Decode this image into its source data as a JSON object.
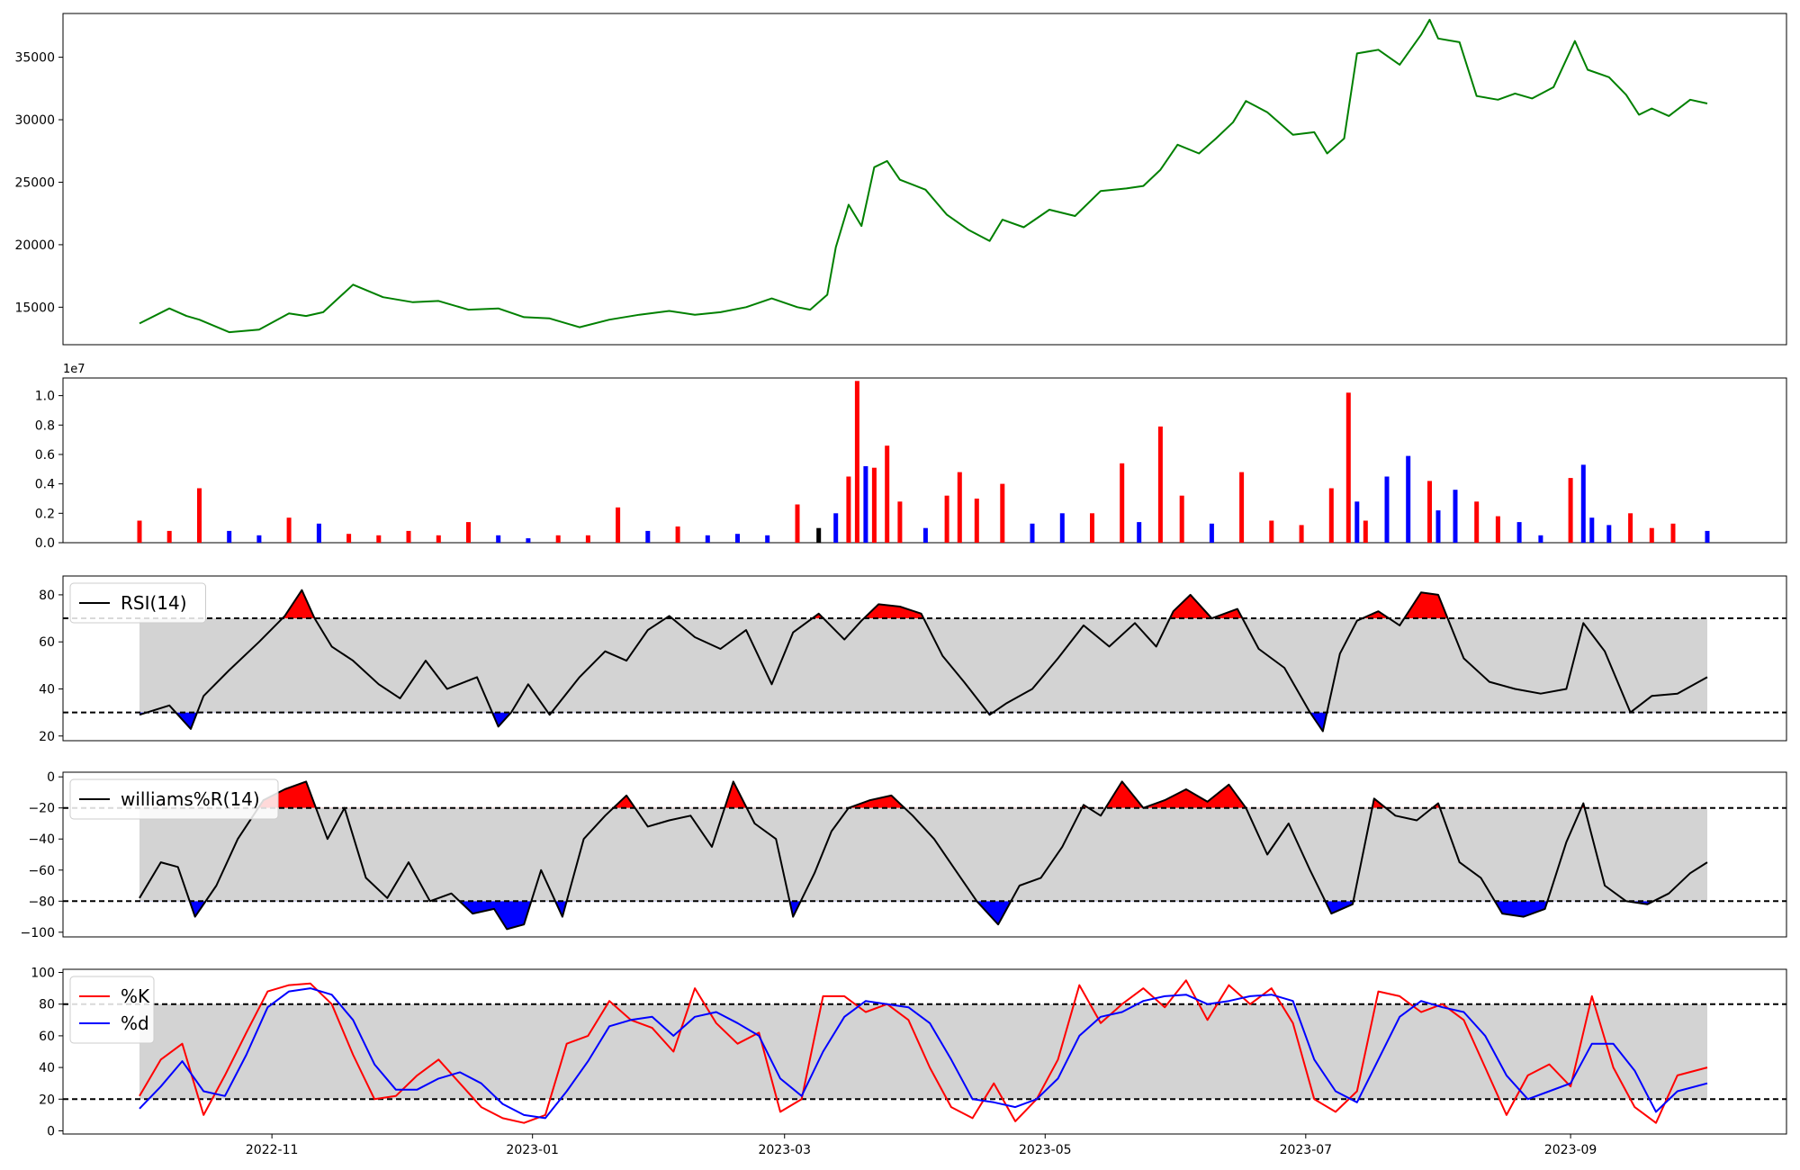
{
  "figure": {
    "x_tick_labels": [
      "2022-11",
      "2023-01",
      "2023-03",
      "2023-05",
      "2023-07",
      "2023-09"
    ],
    "x_tick_dates": [
      "2022-11-01",
      "2023-01-01",
      "2023-03-01",
      "2023-05-01",
      "2023-07-01",
      "2023-09-01"
    ],
    "date_range": [
      "2022-10-01",
      "2023-10-03"
    ]
  },
  "chart_data": [
    {
      "type": "line",
      "name": "price",
      "title": "",
      "color": "#008000",
      "ylim": [
        12000,
        38500
      ],
      "yticks": [
        15000,
        20000,
        25000,
        30000,
        35000
      ],
      "ytick_labels": [
        "15000",
        "20000",
        "25000",
        "30000",
        "35000"
      ],
      "x": [
        "2022-10-01",
        "2022-10-08",
        "2022-10-12",
        "2022-10-15",
        "2022-10-22",
        "2022-10-29",
        "2022-11-05",
        "2022-11-09",
        "2022-11-13",
        "2022-11-20",
        "2022-11-27",
        "2022-12-04",
        "2022-12-10",
        "2022-12-17",
        "2022-12-24",
        "2022-12-30",
        "2023-01-05",
        "2023-01-12",
        "2023-01-19",
        "2023-01-26",
        "2023-02-02",
        "2023-02-08",
        "2023-02-14",
        "2023-02-20",
        "2023-02-26",
        "2023-03-04",
        "2023-03-07",
        "2023-03-11",
        "2023-03-13",
        "2023-03-16",
        "2023-03-19",
        "2023-03-22",
        "2023-03-25",
        "2023-03-28",
        "2023-04-03",
        "2023-04-08",
        "2023-04-13",
        "2023-04-18",
        "2023-04-21",
        "2023-04-26",
        "2023-05-02",
        "2023-05-08",
        "2023-05-14",
        "2023-05-20",
        "2023-05-24",
        "2023-05-28",
        "2023-06-01",
        "2023-06-06",
        "2023-06-10",
        "2023-06-14",
        "2023-06-17",
        "2023-06-22",
        "2023-06-28",
        "2023-07-03",
        "2023-07-06",
        "2023-07-10",
        "2023-07-13",
        "2023-07-18",
        "2023-07-23",
        "2023-07-28",
        "2023-07-30",
        "2023-08-01",
        "2023-08-06",
        "2023-08-10",
        "2023-08-15",
        "2023-08-19",
        "2023-08-23",
        "2023-08-28",
        "2023-09-02",
        "2023-09-05",
        "2023-09-10",
        "2023-09-14",
        "2023-09-17",
        "2023-09-20",
        "2023-09-24",
        "2023-09-29",
        "2023-10-03"
      ],
      "y": [
        13700,
        14900,
        14300,
        14000,
        13000,
        13200,
        14500,
        14300,
        14600,
        16800,
        15800,
        15400,
        15500,
        14800,
        14900,
        14200,
        14100,
        13400,
        14000,
        14400,
        14700,
        14400,
        14600,
        15000,
        15700,
        15000,
        14800,
        16000,
        19800,
        23200,
        21500,
        26200,
        26700,
        25200,
        24400,
        22400,
        21200,
        20300,
        22000,
        21400,
        22800,
        22300,
        24300,
        24500,
        24700,
        26000,
        28000,
        27300,
        28500,
        29800,
        31500,
        30600,
        28800,
        29000,
        27300,
        28500,
        35300,
        35600,
        34400,
        36800,
        38000,
        36500,
        36200,
        31900,
        31600,
        32100,
        31700,
        32600,
        36300,
        34000,
        33400,
        32000,
        30400,
        30900,
        30300,
        31600,
        31300
      ]
    },
    {
      "type": "bar",
      "name": "volume",
      "title": "",
      "scale_label": "1e7",
      "unit_multiplier": 10000000,
      "ylim": [
        0,
        1.12
      ],
      "yticks": [
        0,
        0.2,
        0.4,
        0.6,
        0.8,
        1.0
      ],
      "ytick_labels": [
        "0.0",
        "0.2",
        "0.4",
        "0.6",
        "0.8",
        "1.0"
      ],
      "colors": {
        "up": "#ff0000",
        "down": "#0000ff",
        "flat": "#000000"
      },
      "x": [
        "2022-10-01",
        "2022-10-08",
        "2022-10-15",
        "2022-10-22",
        "2022-10-29",
        "2022-11-05",
        "2022-11-12",
        "2022-11-19",
        "2022-11-26",
        "2022-12-03",
        "2022-12-10",
        "2022-12-17",
        "2022-12-24",
        "2022-12-31",
        "2023-01-07",
        "2023-01-14",
        "2023-01-21",
        "2023-01-28",
        "2023-02-04",
        "2023-02-11",
        "2023-02-18",
        "2023-02-25",
        "2023-03-04",
        "2023-03-09",
        "2023-03-13",
        "2023-03-16",
        "2023-03-18",
        "2023-03-20",
        "2023-03-22",
        "2023-03-25",
        "2023-03-28",
        "2023-04-03",
        "2023-04-08",
        "2023-04-11",
        "2023-04-15",
        "2023-04-21",
        "2023-04-28",
        "2023-05-05",
        "2023-05-12",
        "2023-05-19",
        "2023-05-23",
        "2023-05-28",
        "2023-06-02",
        "2023-06-09",
        "2023-06-16",
        "2023-06-23",
        "2023-06-30",
        "2023-07-07",
        "2023-07-11",
        "2023-07-13",
        "2023-07-15",
        "2023-07-20",
        "2023-07-25",
        "2023-07-30",
        "2023-08-01",
        "2023-08-05",
        "2023-08-10",
        "2023-08-15",
        "2023-08-20",
        "2023-08-25",
        "2023-09-01",
        "2023-09-04",
        "2023-09-06",
        "2023-09-10",
        "2023-09-15",
        "2023-09-20",
        "2023-09-25",
        "2023-10-03"
      ],
      "values": [
        0.15,
        0.08,
        0.37,
        0.08,
        0.05,
        0.17,
        0.13,
        0.06,
        0.05,
        0.08,
        0.05,
        0.14,
        0.05,
        0.03,
        0.05,
        0.05,
        0.24,
        0.08,
        0.11,
        0.05,
        0.06,
        0.05,
        0.26,
        0.1,
        0.2,
        0.45,
        1.1,
        0.52,
        0.51,
        0.66,
        0.28,
        0.1,
        0.32,
        0.48,
        0.3,
        0.4,
        0.13,
        0.2,
        0.2,
        0.54,
        0.14,
        0.79,
        0.32,
        0.13,
        0.48,
        0.15,
        0.12,
        0.37,
        1.02,
        0.28,
        0.15,
        0.45,
        0.59,
        0.42,
        0.22,
        0.36,
        0.28,
        0.18,
        0.14,
        0.05,
        0.44,
        0.53,
        0.17,
        0.12,
        0.2,
        0.1,
        0.13,
        0.08
      ],
      "directions": [
        "up",
        "up",
        "up",
        "down",
        "down",
        "up",
        "down",
        "up",
        "up",
        "up",
        "up",
        "up",
        "down",
        "down",
        "up",
        "up",
        "up",
        "down",
        "up",
        "down",
        "down",
        "down",
        "up",
        "flat",
        "down",
        "up",
        "up",
        "down",
        "up",
        "up",
        "up",
        "down",
        "up",
        "up",
        "up",
        "up",
        "down",
        "down",
        "up",
        "up",
        "down",
        "up",
        "up",
        "down",
        "up",
        "up",
        "up",
        "up",
        "up",
        "down",
        "up",
        "down",
        "down",
        "up",
        "down",
        "down",
        "up",
        "up",
        "down",
        "down",
        "up",
        "down",
        "down",
        "down",
        "up",
        "up",
        "up",
        "down"
      ]
    },
    {
      "type": "line",
      "name": "rsi",
      "title": "",
      "legend": [
        "RSI(14)"
      ],
      "legend_position": "top-left",
      "color": "#000000",
      "ylim": [
        18,
        88
      ],
      "yticks": [
        20,
        40,
        60,
        80
      ],
      "ytick_labels": [
        "20",
        "40",
        "60",
        "80"
      ],
      "upper": 70,
      "lower": 30,
      "colors": {
        "band": "#d3d3d3",
        "overbought": "#ff0000",
        "oversold": "#0000ff"
      },
      "x": [
        "2022-10-01",
        "2022-10-08",
        "2022-10-13",
        "2022-10-16",
        "2022-10-22",
        "2022-10-29",
        "2022-11-04",
        "2022-11-08",
        "2022-11-11",
        "2022-11-15",
        "2022-11-20",
        "2022-11-26",
        "2022-12-01",
        "2022-12-07",
        "2022-12-12",
        "2022-12-19",
        "2022-12-24",
        "2022-12-27",
        "2022-12-31",
        "2023-01-05",
        "2023-01-12",
        "2023-01-18",
        "2023-01-23",
        "2023-01-28",
        "2023-02-02",
        "2023-02-08",
        "2023-02-14",
        "2023-02-20",
        "2023-02-26",
        "2023-03-03",
        "2023-03-09",
        "2023-03-15",
        "2023-03-19",
        "2023-03-23",
        "2023-03-28",
        "2023-04-02",
        "2023-04-07",
        "2023-04-12",
        "2023-04-18",
        "2023-04-22",
        "2023-04-28",
        "2023-05-04",
        "2023-05-10",
        "2023-05-16",
        "2023-05-22",
        "2023-05-27",
        "2023-05-31",
        "2023-06-04",
        "2023-06-09",
        "2023-06-15",
        "2023-06-20",
        "2023-06-26",
        "2023-07-02",
        "2023-07-05",
        "2023-07-09",
        "2023-07-13",
        "2023-07-18",
        "2023-07-23",
        "2023-07-28",
        "2023-08-01",
        "2023-08-07",
        "2023-08-13",
        "2023-08-19",
        "2023-08-25",
        "2023-08-31",
        "2023-09-04",
        "2023-09-09",
        "2023-09-15",
        "2023-09-20",
        "2023-09-26",
        "2023-10-03"
      ],
      "y": [
        29,
        33,
        23,
        37,
        48,
        60,
        71,
        82,
        70,
        58,
        52,
        42,
        36,
        52,
        40,
        45,
        24,
        30,
        42,
        29,
        45,
        56,
        52,
        65,
        71,
        62,
        57,
        65,
        42,
        64,
        72,
        61,
        69,
        76,
        75,
        72,
        54,
        43,
        29,
        34,
        40,
        53,
        67,
        58,
        68,
        58,
        73,
        80,
        70,
        74,
        57,
        49,
        30,
        22,
        55,
        69,
        73,
        67,
        81,
        80,
        53,
        43,
        40,
        38,
        40,
        68,
        56,
        30,
        37,
        38,
        45
      ]
    },
    {
      "type": "line",
      "name": "williams_r",
      "title": "",
      "legend": [
        "williams%R(14)"
      ],
      "legend_position": "top-left",
      "color": "#000000",
      "ylim": [
        -103,
        3
      ],
      "yticks": [
        -100,
        -80,
        -60,
        -40,
        -20,
        0
      ],
      "ytick_labels": [
        "−100",
        "−80",
        "−60",
        "−40",
        "−20",
        "0"
      ],
      "upper": -20,
      "lower": -80,
      "colors": {
        "band": "#d3d3d3",
        "overbought": "#ff0000",
        "oversold": "#0000ff"
      },
      "x": [
        "2022-10-01",
        "2022-10-06",
        "2022-10-10",
        "2022-10-14",
        "2022-10-19",
        "2022-10-24",
        "2022-10-30",
        "2022-11-04",
        "2022-11-09",
        "2022-11-14",
        "2022-11-18",
        "2022-11-23",
        "2022-11-28",
        "2022-12-03",
        "2022-12-08",
        "2022-12-13",
        "2022-12-18",
        "2022-12-23",
        "2022-12-26",
        "2022-12-30",
        "2023-01-03",
        "2023-01-08",
        "2023-01-13",
        "2023-01-18",
        "2023-01-23",
        "2023-01-28",
        "2023-02-02",
        "2023-02-07",
        "2023-02-12",
        "2023-02-17",
        "2023-02-22",
        "2023-02-27",
        "2023-03-03",
        "2023-03-08",
        "2023-03-12",
        "2023-03-16",
        "2023-03-21",
        "2023-03-26",
        "2023-03-31",
        "2023-04-05",
        "2023-04-10",
        "2023-04-15",
        "2023-04-20",
        "2023-04-25",
        "2023-04-30",
        "2023-05-05",
        "2023-05-10",
        "2023-05-14",
        "2023-05-19",
        "2023-05-24",
        "2023-05-29",
        "2023-06-03",
        "2023-06-08",
        "2023-06-13",
        "2023-06-17",
        "2023-06-22",
        "2023-06-27",
        "2023-07-02",
        "2023-07-07",
        "2023-07-12",
        "2023-07-17",
        "2023-07-22",
        "2023-07-27",
        "2023-08-01",
        "2023-08-06",
        "2023-08-11",
        "2023-08-16",
        "2023-08-21",
        "2023-08-26",
        "2023-08-31",
        "2023-09-04",
        "2023-09-09",
        "2023-09-14",
        "2023-09-19",
        "2023-09-24",
        "2023-09-29",
        "2023-10-03"
      ],
      "y": [
        -78,
        -55,
        -58,
        -90,
        -70,
        -40,
        -15,
        -8,
        -3,
        -40,
        -20,
        -65,
        -78,
        -55,
        -80,
        -75,
        -88,
        -85,
        -98,
        -95,
        -60,
        -90,
        -40,
        -25,
        -12,
        -32,
        -28,
        -25,
        -45,
        -3,
        -30,
        -40,
        -90,
        -62,
        -35,
        -20,
        -15,
        -12,
        -25,
        -40,
        -60,
        -80,
        -95,
        -70,
        -65,
        -45,
        -18,
        -25,
        -3,
        -20,
        -15,
        -8,
        -16,
        -5,
        -20,
        -50,
        -30,
        -60,
        -88,
        -82,
        -14,
        -25,
        -28,
        -17,
        -55,
        -65,
        -88,
        -90,
        -85,
        -42,
        -17,
        -70,
        -80,
        -82,
        -75,
        -62,
        -55
      ]
    },
    {
      "type": "line",
      "name": "stochastic",
      "title": "",
      "legend": [
        "%K",
        "%d"
      ],
      "legend_position": "top-left",
      "ylim": [
        -2,
        102
      ],
      "yticks": [
        0,
        20,
        40,
        60,
        80,
        100
      ],
      "ytick_labels": [
        "0",
        "20",
        "40",
        "60",
        "80",
        "100"
      ],
      "upper": 80,
      "lower": 20,
      "colors": {
        "band": "#d3d3d3",
        "k": "#ff0000",
        "d": "#0000ff"
      },
      "x": [
        "2022-10-01",
        "2022-10-06",
        "2022-10-11",
        "2022-10-16",
        "2022-10-21",
        "2022-10-26",
        "2022-10-31",
        "2022-11-05",
        "2022-11-10",
        "2022-11-15",
        "2022-11-20",
        "2022-11-25",
        "2022-11-30",
        "2022-12-05",
        "2022-12-10",
        "2022-12-15",
        "2022-12-20",
        "2022-12-25",
        "2022-12-30",
        "2023-01-04",
        "2023-01-09",
        "2023-01-14",
        "2023-01-19",
        "2023-01-24",
        "2023-01-29",
        "2023-02-03",
        "2023-02-08",
        "2023-02-13",
        "2023-02-18",
        "2023-02-23",
        "2023-02-28",
        "2023-03-05",
        "2023-03-10",
        "2023-03-15",
        "2023-03-20",
        "2023-03-25",
        "2023-03-30",
        "2023-04-04",
        "2023-04-09",
        "2023-04-14",
        "2023-04-19",
        "2023-04-24",
        "2023-04-29",
        "2023-05-04",
        "2023-05-09",
        "2023-05-14",
        "2023-05-19",
        "2023-05-24",
        "2023-05-29",
        "2023-06-03",
        "2023-06-08",
        "2023-06-13",
        "2023-06-18",
        "2023-06-23",
        "2023-06-28",
        "2023-07-03",
        "2023-07-08",
        "2023-07-13",
        "2023-07-18",
        "2023-07-23",
        "2023-07-28",
        "2023-08-02",
        "2023-08-07",
        "2023-08-12",
        "2023-08-17",
        "2023-08-22",
        "2023-08-27",
        "2023-09-01",
        "2023-09-06",
        "2023-09-11",
        "2023-09-16",
        "2023-09-21",
        "2023-09-26",
        "2023-10-03"
      ],
      "k": [
        22,
        45,
        55,
        10,
        35,
        62,
        88,
        92,
        93,
        80,
        48,
        20,
        22,
        35,
        45,
        30,
        15,
        8,
        5,
        10,
        55,
        60,
        82,
        70,
        65,
        50,
        90,
        68,
        55,
        62,
        12,
        20,
        85,
        85,
        75,
        80,
        70,
        40,
        15,
        8,
        30,
        6,
        20,
        45,
        92,
        68,
        80,
        90,
        78,
        95,
        70,
        92,
        80,
        90,
        68,
        20,
        12,
        25,
        88,
        85,
        75,
        80,
        70,
        40,
        10,
        35,
        42,
        28,
        85,
        40,
        15,
        5,
        35,
        40
      ],
      "d": [
        14,
        28,
        44,
        25,
        22,
        48,
        78,
        88,
        90,
        86,
        70,
        42,
        26,
        26,
        33,
        37,
        30,
        17,
        10,
        8,
        25,
        44,
        66,
        70,
        72,
        60,
        72,
        75,
        68,
        60,
        33,
        22,
        50,
        72,
        82,
        80,
        78,
        68,
        45,
        20,
        18,
        15,
        20,
        33,
        60,
        72,
        75,
        82,
        85,
        86,
        80,
        82,
        85,
        86,
        82,
        45,
        25,
        18,
        45,
        72,
        82,
        78,
        75,
        60,
        35,
        20,
        25,
        30,
        55,
        55,
        38,
        12,
        25,
        30
      ]
    }
  ]
}
